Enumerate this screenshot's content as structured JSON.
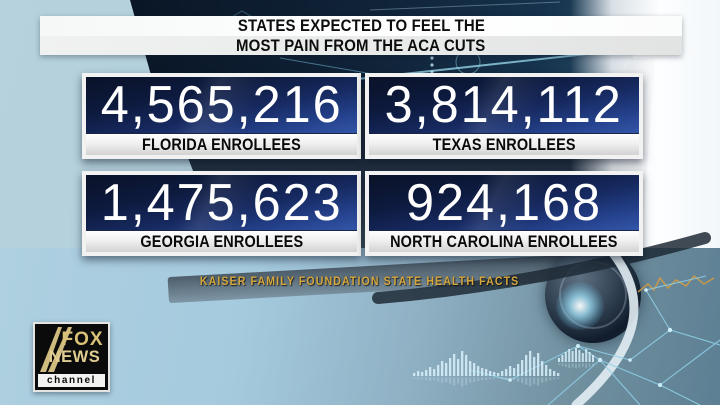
{
  "chart_data": {
    "type": "table",
    "title": "States Expected to Feel the Most Pain from the ACA Cuts",
    "categories": [
      "Florida",
      "Texas",
      "Georgia",
      "North Carolina"
    ],
    "values": [
      4565216,
      3814112,
      1475623,
      924168
    ],
    "value_label": "ACA enrollees",
    "source": "Kaiser Family Foundation State Health Facts"
  },
  "banner": {
    "line1": "STATES EXPECTED TO FEEL THE",
    "line2": "MOST PAIN FROM THE ACA CUTS"
  },
  "stats": [
    {
      "value": "4,565,216",
      "label": "FLORIDA ENROLLEES"
    },
    {
      "value": "3,814,112",
      "label": "TEXAS ENROLLEES"
    },
    {
      "value": "1,475,623",
      "label": "GEORGIA ENROLLEES"
    },
    {
      "value": "924,168",
      "label": "NORTH CAROLINA ENROLLEES"
    }
  ],
  "source": "KAISER FAMILY FOUNDATION STATE HEALTH FACTS",
  "logo": {
    "brand_top": "FOX",
    "brand_bottom": "NEWS",
    "strip": "channel"
  },
  "colors": {
    "box_blue_top": "#0a1227",
    "box_blue_bottom": "#3356a8",
    "box_border": "#f2f2f2",
    "banner_bg": "#ffffff",
    "banner_text": "#0d0d0d",
    "source_gold": "#d5a73e",
    "logo_gold": "#d9c178",
    "background_light_blue": "#b6d2dc",
    "background_dark_navy": "#0a1626"
  }
}
